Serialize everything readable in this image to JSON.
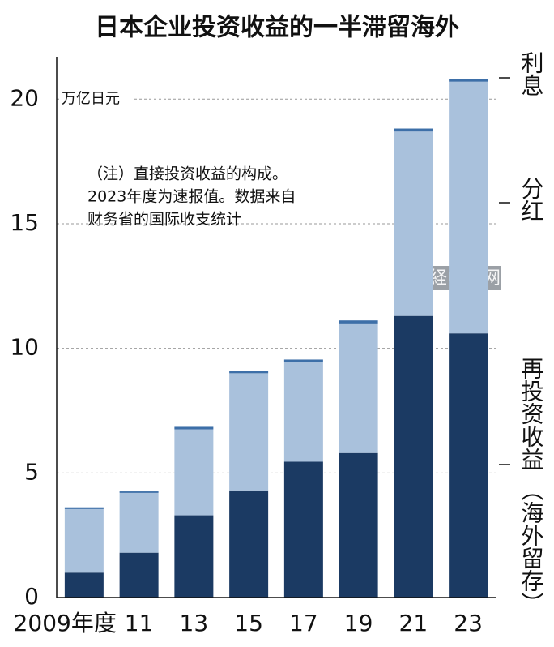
{
  "chart_data": {
    "type": "stacked_bar",
    "title": "日本企业投资收益的一半滞留海外",
    "y_label": "万亿日元",
    "note": [
      "（注）直接投资收益的构成。",
      "2023年度为速报值。数据来自",
      "财务省的国际收支统计"
    ],
    "watermark": "日経中文网",
    "annotation": "（海外留存）",
    "categories": [
      "2009年度",
      "11",
      "13",
      "15",
      "17",
      "19",
      "21",
      "23"
    ],
    "series": [
      {
        "name": "再投资收益",
        "color": "#1b3a63",
        "values": [
          1.0,
          1.8,
          3.3,
          4.3,
          5.45,
          5.8,
          11.3,
          10.6
        ]
      },
      {
        "name": "分红",
        "color": "#a9c1dc",
        "values": [
          2.55,
          2.4,
          3.45,
          4.7,
          4.0,
          5.2,
          7.4,
          10.1
        ]
      },
      {
        "name": "利息",
        "color": "#3d6fa8",
        "values": [
          0.07,
          0.06,
          0.1,
          0.1,
          0.1,
          0.12,
          0.12,
          0.12
        ]
      }
    ],
    "ylim": [
      0,
      21.7
    ],
    "yticks": [
      0,
      5,
      10,
      15,
      20
    ],
    "grid": true
  }
}
